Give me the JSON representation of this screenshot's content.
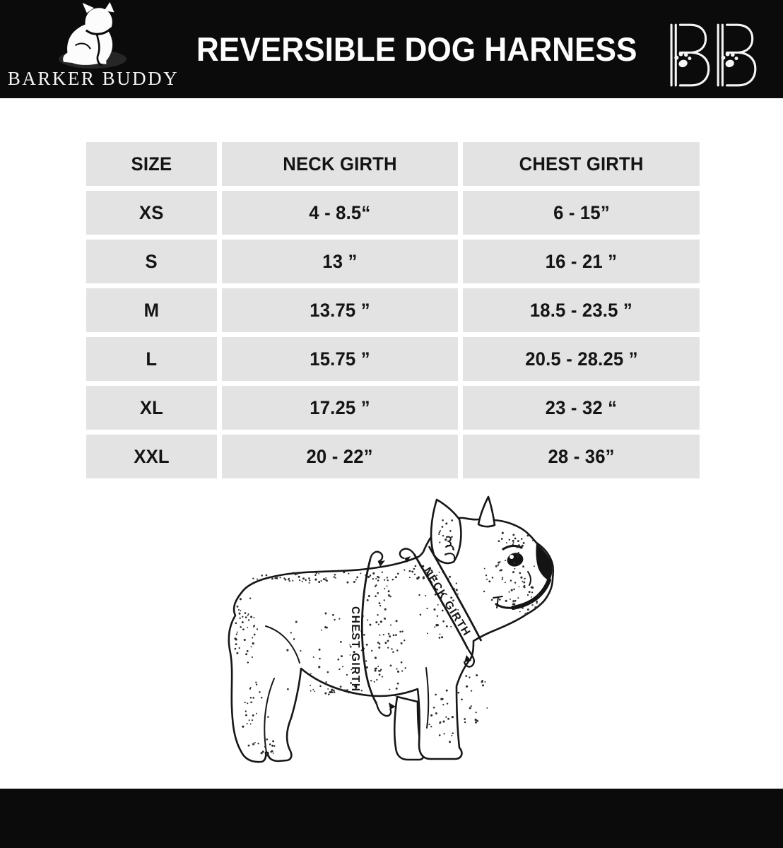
{
  "header": {
    "brand_name": "BARKER BUDDY",
    "title": "REVERSIBLE DOG HARNESS",
    "monogram": "BB"
  },
  "chart_data": {
    "type": "table",
    "title": "REVERSIBLE DOG HARNESS",
    "columns": [
      "SIZE",
      "NECK GIRTH",
      "CHEST GIRTH"
    ],
    "rows": [
      [
        "XS",
        "4 - 8.5“",
        "6 - 15”"
      ],
      [
        "S",
        "13 ”",
        "16 - 21 ”"
      ],
      [
        "M",
        "13.75 ”",
        "18.5 - 23.5 ”"
      ],
      [
        "L",
        "15.75 ”",
        "20.5 - 28.25 ”"
      ],
      [
        "XL",
        "17.25 ”",
        "23 - 32 “"
      ],
      [
        "XXL",
        "20 - 22”",
        "28 - 36”"
      ]
    ]
  },
  "diagram": {
    "neck_label": "NECK GIRTH",
    "chest_label": "CHEST GIRTH"
  },
  "colors": {
    "header_bg": "#0b0b0b",
    "cell_bg": "#e3e3e3",
    "ink": "#141414",
    "page_bg": "#ffffff"
  }
}
